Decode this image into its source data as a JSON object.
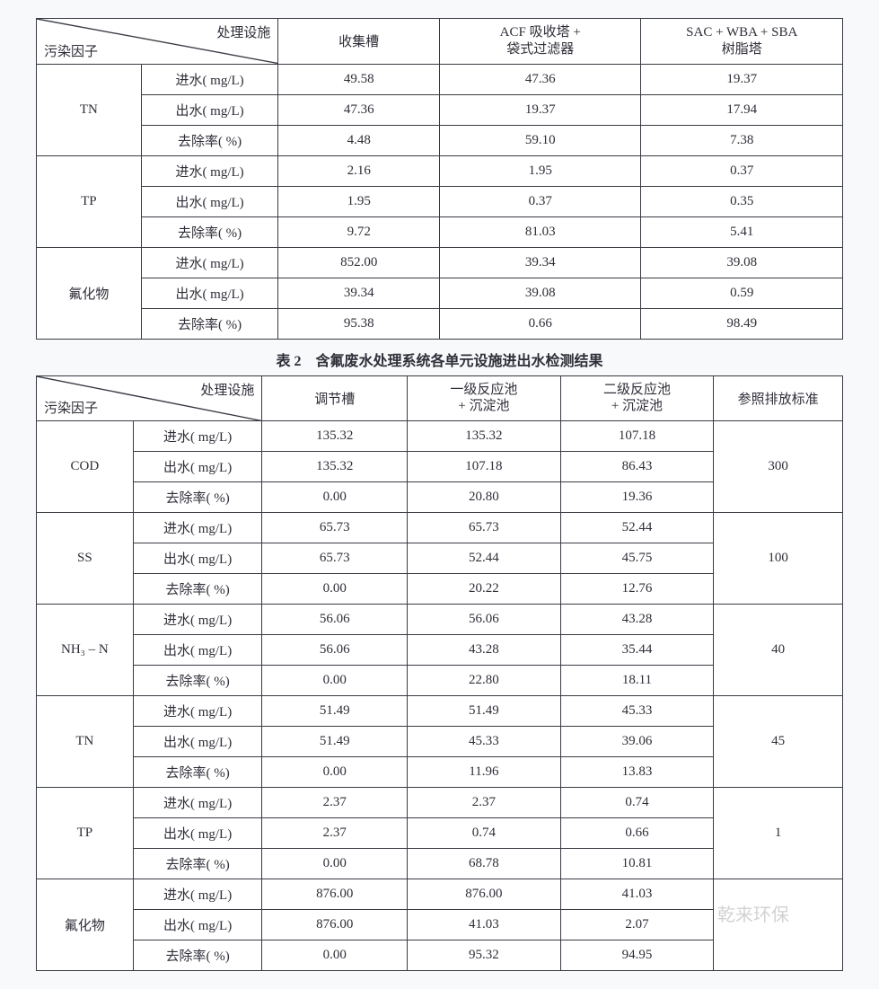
{
  "labels": {
    "diag_upper": "处理设施",
    "diag_lower": "污染因子",
    "influent": "进水( mg/L)",
    "effluent": "出水( mg/L)",
    "removal": "去除率( %)",
    "ref_std": "参照排放标准"
  },
  "table1": {
    "type": "table",
    "columns": [
      "收集槽",
      "ACF 吸收塔 +\n袋式过滤器",
      "SAC + WBA + SBA\n树脂塔"
    ],
    "groups": [
      {
        "name": "TN",
        "rows": [
          {
            "metric": "influent",
            "values": [
              "49.58",
              "47.36",
              "19.37"
            ]
          },
          {
            "metric": "effluent",
            "values": [
              "47.36",
              "19.37",
              "17.94"
            ]
          },
          {
            "metric": "removal",
            "values": [
              "4.48",
              "59.10",
              "7.38"
            ]
          }
        ]
      },
      {
        "name": "TP",
        "rows": [
          {
            "metric": "influent",
            "values": [
              "2.16",
              "1.95",
              "0.37"
            ]
          },
          {
            "metric": "effluent",
            "values": [
              "1.95",
              "0.37",
              "0.35"
            ]
          },
          {
            "metric": "removal",
            "values": [
              "9.72",
              "81.03",
              "5.41"
            ]
          }
        ]
      },
      {
        "name": "氟化物",
        "rows": [
          {
            "metric": "influent",
            "values": [
              "852.00",
              "39.34",
              "39.08"
            ]
          },
          {
            "metric": "effluent",
            "values": [
              "39.34",
              "39.08",
              "0.59"
            ]
          },
          {
            "metric": "removal",
            "values": [
              "95.38",
              "0.66",
              "98.49"
            ]
          }
        ]
      }
    ],
    "border_color": "#3a3a44",
    "background_color": "#ffffff",
    "font_size": 15
  },
  "caption2": "表 2　含氟废水处理系统各单元设施进出水检测结果",
  "table2": {
    "type": "table",
    "columns": [
      "调节槽",
      "一级反应池\n+ 沉淀池",
      "二级反应池\n+ 沉淀池"
    ],
    "groups": [
      {
        "name": "COD",
        "standard": "300",
        "rows": [
          {
            "metric": "influent",
            "values": [
              "135.32",
              "135.32",
              "107.18"
            ]
          },
          {
            "metric": "effluent",
            "values": [
              "135.32",
              "107.18",
              "86.43"
            ]
          },
          {
            "metric": "removal",
            "values": [
              "0.00",
              "20.80",
              "19.36"
            ]
          }
        ]
      },
      {
        "name": "SS",
        "standard": "100",
        "rows": [
          {
            "metric": "influent",
            "values": [
              "65.73",
              "65.73",
              "52.44"
            ]
          },
          {
            "metric": "effluent",
            "values": [
              "65.73",
              "52.44",
              "45.75"
            ]
          },
          {
            "metric": "removal",
            "values": [
              "0.00",
              "20.22",
              "12.76"
            ]
          }
        ]
      },
      {
        "name": "NH₃ – N",
        "standard": "40",
        "rows": [
          {
            "metric": "influent",
            "values": [
              "56.06",
              "56.06",
              "43.28"
            ]
          },
          {
            "metric": "effluent",
            "values": [
              "56.06",
              "43.28",
              "35.44"
            ]
          },
          {
            "metric": "removal",
            "values": [
              "0.00",
              "22.80",
              "18.11"
            ]
          }
        ]
      },
      {
        "name": "TN",
        "standard": "45",
        "rows": [
          {
            "metric": "influent",
            "values": [
              "51.49",
              "51.49",
              "45.33"
            ]
          },
          {
            "metric": "effluent",
            "values": [
              "51.49",
              "45.33",
              "39.06"
            ]
          },
          {
            "metric": "removal",
            "values": [
              "0.00",
              "11.96",
              "13.83"
            ]
          }
        ]
      },
      {
        "name": "TP",
        "standard": "1",
        "rows": [
          {
            "metric": "influent",
            "values": [
              "2.37",
              "2.37",
              "0.74"
            ]
          },
          {
            "metric": "effluent",
            "values": [
              "2.37",
              "0.74",
              "0.66"
            ]
          },
          {
            "metric": "removal",
            "values": [
              "0.00",
              "68.78",
              "10.81"
            ]
          }
        ]
      },
      {
        "name": "氟化物",
        "standard": "",
        "rows": [
          {
            "metric": "influent",
            "values": [
              "876.00",
              "876.00",
              "41.03"
            ]
          },
          {
            "metric": "effluent",
            "values": [
              "876.00",
              "41.03",
              "2.07"
            ]
          },
          {
            "metric": "removal",
            "values": [
              "0.00",
              "95.32",
              "94.95"
            ]
          }
        ]
      }
    ],
    "border_color": "#3a3a44",
    "background_color": "#ffffff",
    "font_size": 15
  },
  "watermark": "乾来环保"
}
